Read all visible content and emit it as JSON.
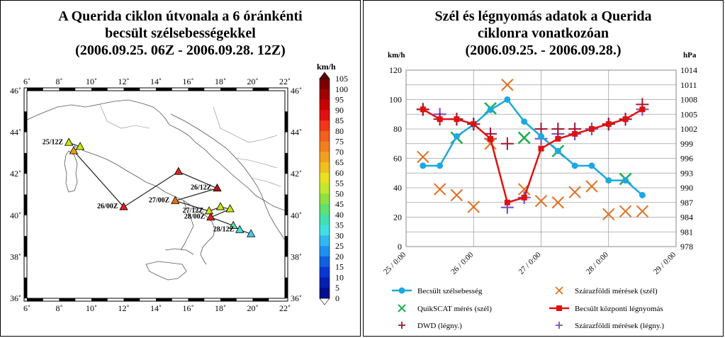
{
  "left": {
    "title_lines": [
      "A Querida ciklon útvonala a 6 óránkénti",
      "becsült szélsebességekkel",
      "(2006.09.25. 06Z - 2006.09.28. 12Z)"
    ],
    "colorbar_unit": "km/h",
    "colorbar_ticks": [
      105,
      100,
      95,
      90,
      85,
      80,
      75,
      70,
      65,
      60,
      55,
      50,
      45,
      40,
      35,
      30,
      25,
      20,
      15,
      10,
      5,
      0
    ],
    "lon_ticks": [
      "6˚",
      "8˚",
      "10˚",
      "12˚",
      "14˚",
      "16˚",
      "18˚",
      "20˚",
      "22˚"
    ],
    "lat_ticks": [
      "46˚",
      "44˚",
      "42˚",
      "40˚",
      "38˚",
      "36˚"
    ],
    "track": [
      {
        "label": "25/12Z",
        "lon": 8.6,
        "lat": 43.5,
        "color": "#c8e600"
      },
      {
        "label": "",
        "lon": 9.3,
        "lat": 43.3,
        "color": "#c8e600"
      },
      {
        "label": "",
        "lon": 8.9,
        "lat": 43.1,
        "color": "#f0a000"
      },
      {
        "label": "26/00Z",
        "lon": 12.0,
        "lat": 40.4,
        "color": "#e02020"
      },
      {
        "label": "",
        "lon": 15.4,
        "lat": 42.1,
        "color": "#e02020"
      },
      {
        "label": "26/12Z",
        "lon": 17.8,
        "lat": 41.3,
        "color": "#c01010"
      },
      {
        "label": "27/00Z",
        "lon": 15.2,
        "lat": 40.7,
        "color": "#f07000"
      },
      {
        "label": "27/12Z",
        "lon": 17.3,
        "lat": 40.2,
        "color": "#d8e000"
      },
      {
        "label": "",
        "lon": 18.0,
        "lat": 40.4,
        "color": "#c8e600"
      },
      {
        "label": "",
        "lon": 18.6,
        "lat": 40.3,
        "color": "#c8e600"
      },
      {
        "label": "28/00Z",
        "lon": 17.4,
        "lat": 39.9,
        "color": "#e02020"
      },
      {
        "label": "",
        "lon": 18.8,
        "lat": 39.5,
        "color": "#60e0a0"
      },
      {
        "label": "28/12Z",
        "lon": 19.2,
        "lat": 39.3,
        "color": "#40e0e0"
      },
      {
        "label": "",
        "lon": 19.9,
        "lat": 39.1,
        "color": "#40d0f0"
      }
    ]
  },
  "right": {
    "title_lines": [
      "Szél és légnyomás adatok a Querida",
      "ciklonra vonatkozóan",
      "(2006.09.25. - 2006.09.28.)"
    ],
    "left_unit": "km/h",
    "right_unit": "hPa",
    "left_ticks": [
      "120",
      "100",
      "80",
      "60",
      "40",
      "20",
      "0"
    ],
    "right_ticks": [
      "1014",
      "1011",
      "1008",
      "1005",
      "1002",
      "999",
      "996",
      "993",
      "990",
      "987",
      "984",
      "981",
      "978"
    ],
    "x_ticks": [
      "25 / 0:00",
      "26 / 0:00",
      "27 / 0:00",
      "28 / 0:00",
      "29 / 0:00"
    ],
    "legend": [
      "Becsült szélsebesség",
      "Szárazföldi mérések (szél)",
      "QuikSCAT mérés (szél)",
      "Becsült központi légnyomás",
      "DWD (légny.)",
      "Szárazföldi mérések (légny.)"
    ]
  },
  "colors": {
    "wind_est": "#1ca8e0",
    "land_wind": "#e07020",
    "quikscat": "#20b050",
    "pressure_est": "#e01010",
    "dwd": "#a01830",
    "land_pressure": "#8050c0"
  },
  "chart_data": [
    {
      "type": "line",
      "title": "Szél és légnyomás adatok a Querida ciklonra vonatkozóan (2006.09.25. - 2006.09.28.)",
      "xlabel": "",
      "ylabel": "km/h",
      "y2label": "hPa",
      "ylim": [
        0,
        120
      ],
      "y2lim": [
        978,
        1014
      ],
      "xlim": [
        0,
        4
      ],
      "grid": true,
      "legend_position": "bottom",
      "series": [
        {
          "name": "Becsült szélsebesség",
          "axis": "left",
          "x": [
            0.25,
            0.5,
            0.75,
            1.0,
            1.25,
            1.5,
            1.75,
            2.0,
            2.25,
            2.5,
            2.75,
            3.0,
            3.25,
            3.5
          ],
          "y": [
            55,
            55,
            75,
            83,
            93,
            100,
            85,
            75,
            65,
            55,
            55,
            45,
            45,
            35
          ]
        },
        {
          "name": "Szárazföldi mérések (szél)",
          "axis": "left",
          "x": [
            0.25,
            0.5,
            0.75,
            1.0,
            1.25,
            1.5,
            1.75,
            2.0,
            2.25,
            2.5,
            2.75,
            3.0,
            3.25,
            3.5
          ],
          "y": [
            61,
            39,
            35,
            27,
            70,
            110,
            39,
            31,
            30,
            37,
            41,
            22,
            24,
            24
          ]
        },
        {
          "name": "QuikSCAT mérés (szél)",
          "axis": "left",
          "x": [
            0.75,
            1.25,
            1.75,
            2.25,
            3.25
          ],
          "y": [
            74,
            94,
            74,
            65,
            46
          ]
        },
        {
          "name": "Becsült központi légnyomás",
          "axis": "right",
          "x": [
            0.25,
            0.5,
            0.75,
            1.0,
            1.25,
            1.5,
            1.75,
            2.0,
            2.25,
            2.5,
            2.75,
            3.0,
            3.25,
            3.5
          ],
          "y": [
            1006,
            1004,
            1004,
            1003,
            1000,
            987,
            988,
            998,
            1000,
            1001,
            1002,
            1003,
            1004,
            1006
          ]
        },
        {
          "name": "DWD (légny.)",
          "axis": "right",
          "x": [
            0.25,
            0.5,
            0.75,
            1.0,
            1.25,
            1.5,
            2.0,
            2.25,
            2.5,
            3.0,
            3.25,
            3.5
          ],
          "y": [
            1006,
            1004,
            1004,
            1003,
            1001,
            999,
            1002,
            1002,
            1002,
            1003,
            1004,
            1007
          ]
        },
        {
          "name": "Szárazföldi mérések (légny.)",
          "axis": "right",
          "x": [
            0.25,
            0.5,
            0.75,
            1.0,
            1.25,
            1.5,
            1.75,
            2.0,
            2.25,
            2.5,
            2.75,
            3.0,
            3.25,
            3.5
          ],
          "y": [
            1006,
            1005,
            1004,
            1003,
            1000,
            986,
            988,
            1000,
            1001,
            1001,
            1002,
            1003,
            1004,
            1006
          ]
        }
      ]
    }
  ]
}
